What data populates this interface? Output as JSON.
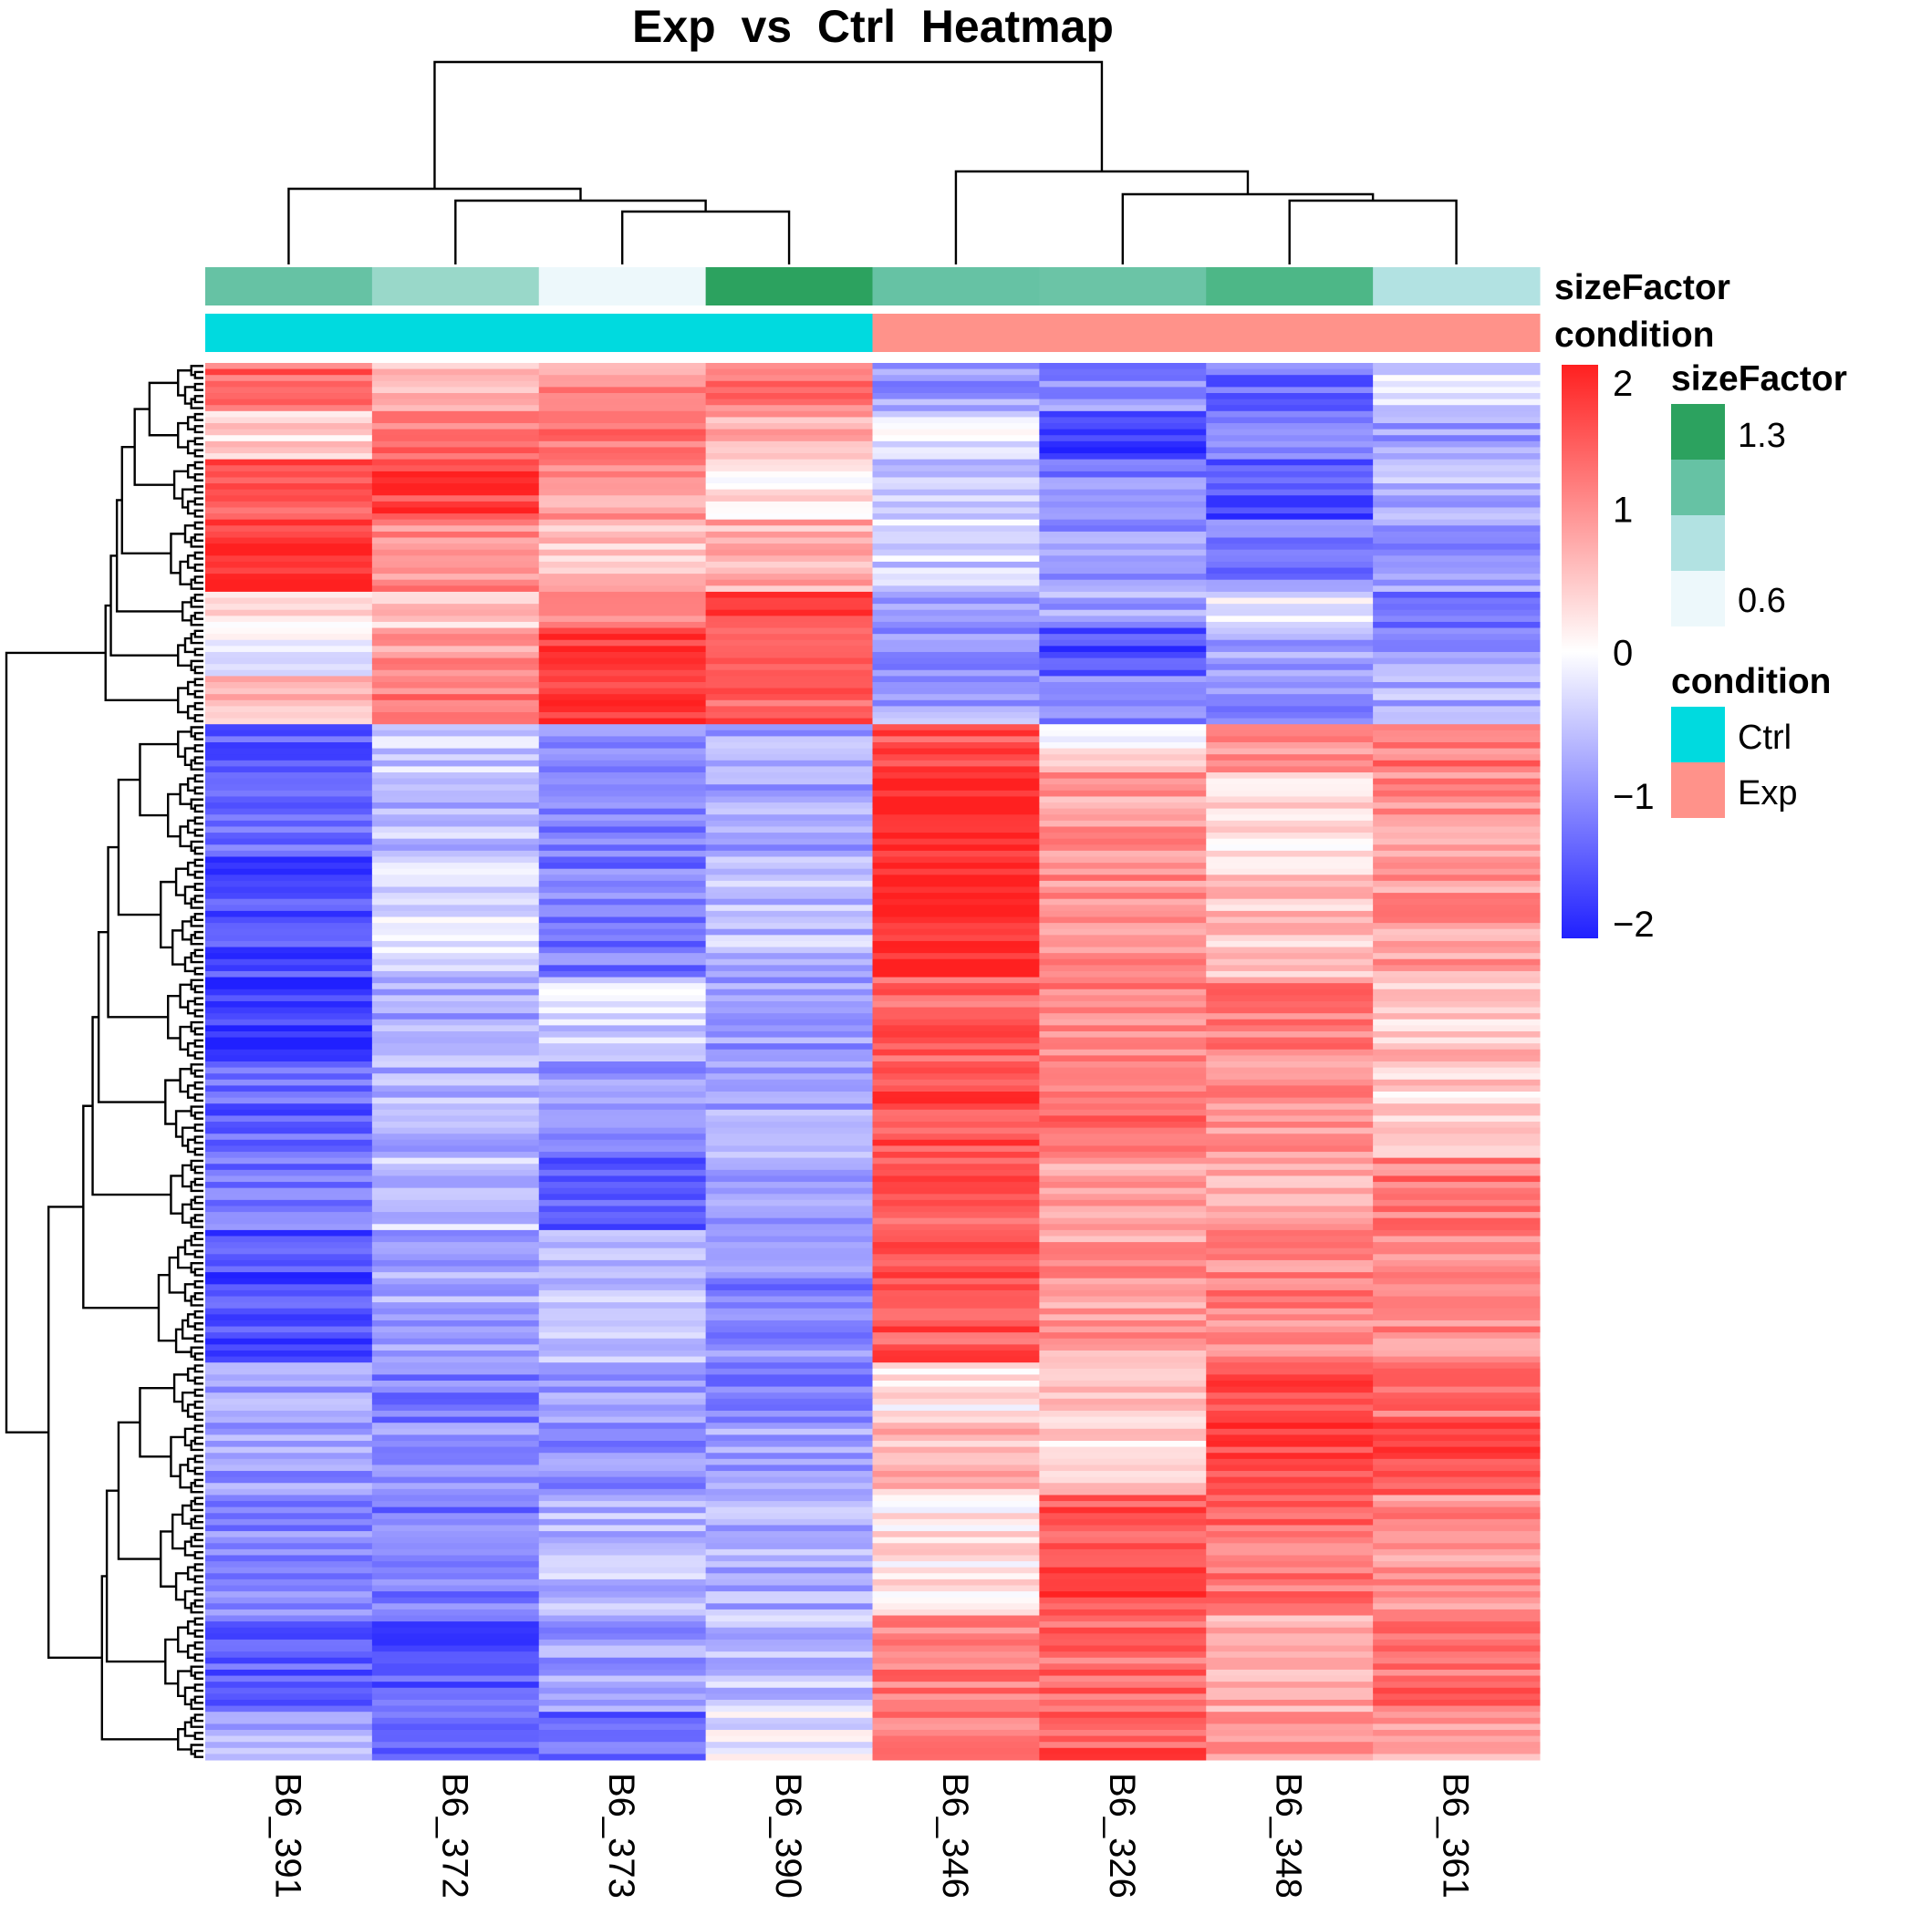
{
  "chart_data": {
    "type": "heatmap",
    "title": "Exp  vs  Ctrl  Heatmap",
    "columns": [
      "B6_391",
      "B6_372",
      "B6_373",
      "B6_390",
      "B6_346",
      "B6_326",
      "B6_348",
      "B6_361"
    ],
    "column_annotations": {
      "sizeFactor": {
        "label": "sizeFactor",
        "colors": [
          "#66C2A4",
          "#99D8C9",
          "#EDF8FB",
          "#2CA25F",
          "#66C2A4",
          "#6BC4A6",
          "#4DB787",
          "#B2E2E2"
        ]
      },
      "condition": {
        "label": "condition",
        "values": [
          "Ctrl",
          "Ctrl",
          "Ctrl",
          "Ctrl",
          "Exp",
          "Exp",
          "Exp",
          "Exp"
        ]
      }
    },
    "color_scale": {
      "min": -2,
      "max": 2,
      "low": "#2020FF",
      "mid": "#FFFFFF",
      "high": "#FF2020",
      "ticks": [
        {
          "v": 2,
          "label": "2"
        },
        {
          "v": 1,
          "label": "1"
        },
        {
          "v": 0,
          "label": "0"
        },
        {
          "v": -1,
          "label": "−1"
        },
        {
          "v": -2,
          "label": "−2"
        }
      ]
    },
    "legend_sizeFactor": {
      "title": "sizeFactor",
      "colors": [
        "#2CA25F",
        "#66C2A4",
        "#B2E2E2",
        "#EDF8FB"
      ],
      "high_label": "1.3",
      "low_label": "0.6"
    },
    "legend_condition": {
      "title": "condition",
      "items": [
        {
          "label": "Ctrl",
          "color": "#00DADF"
        },
        {
          "label": "Exp",
          "color": "#FF928A"
        }
      ]
    },
    "row_clusters": [
      {
        "segments": [
          {
            "n": 8,
            "values": [
              1.4,
              0.6,
              1.0,
              1.2,
              -0.9,
              -1.0,
              -1.3,
              -0.3
            ]
          },
          {
            "n": 8,
            "values": [
              0.3,
              1.3,
              1.2,
              0.8,
              -0.1,
              -1.9,
              -1.2,
              -0.9
            ]
          },
          {
            "n": 10,
            "values": [
              1.5,
              1.7,
              0.9,
              0.3,
              -0.6,
              -1.1,
              -1.6,
              -0.7
            ]
          },
          {
            "n": 12,
            "values": [
              1.9,
              1.0,
              0.6,
              0.7,
              -0.4,
              -1.0,
              -1.2,
              -0.9
            ]
          },
          {
            "n": 6,
            "values": [
              0.2,
              0.5,
              1.2,
              1.8,
              -0.9,
              -0.8,
              -0.2,
              -1.2
            ]
          },
          {
            "n": 8,
            "values": [
              -0.1,
              0.9,
              1.7,
              1.5,
              -1.0,
              -1.6,
              -0.9,
              -0.8
            ]
          },
          {
            "n": 8,
            "values": [
              0.6,
              1.2,
              1.8,
              1.4,
              -0.8,
              -1.0,
              -1.1,
              -0.7
            ]
          }
        ]
      },
      {
        "segments": [
          {
            "n": 8,
            "values": [
              -1.4,
              -0.5,
              -1.1,
              -0.8,
              1.6,
              0.2,
              1.0,
              1.2
            ]
          },
          {
            "n": 14,
            "values": [
              -1.2,
              -0.6,
              -1.2,
              -0.8,
              2.0,
              0.9,
              0.3,
              1.0
            ]
          },
          {
            "n": 20,
            "values": [
              -1.6,
              -0.3,
              -1.2,
              -0.6,
              2.0,
              1.0,
              0.5,
              0.9
            ]
          },
          {
            "n": 14,
            "values": [
              -1.8,
              -0.8,
              -0.4,
              -0.9,
              1.4,
              1.1,
              1.2,
              0.5
            ]
          },
          {
            "n": 16,
            "values": [
              -1.4,
              -0.7,
              -0.9,
              -0.8,
              1.6,
              1.3,
              1.0,
              0.4
            ]
          },
          {
            "n": 12,
            "values": [
              -1.2,
              -0.5,
              -1.4,
              -1.0,
              1.5,
              0.9,
              0.8,
              1.2
            ]
          },
          {
            "n": 22,
            "values": [
              -1.6,
              -0.8,
              -0.6,
              -1.1,
              1.5,
              0.9,
              1.1,
              1.0
            ]
          }
        ]
      },
      {
        "segments": [
          {
            "n": 10,
            "values": [
              -0.8,
              -1.2,
              -0.9,
              -1.2,
              0.2,
              0.5,
              1.6,
              1.3
            ]
          },
          {
            "n": 12,
            "values": [
              -0.9,
              -1.0,
              -1.1,
              -0.8,
              0.6,
              0.4,
              1.7,
              1.6
            ]
          },
          {
            "n": 20,
            "values": [
              -1.1,
              -1.2,
              -0.6,
              -0.7,
              0.2,
              1.6,
              1.3,
              1.0
            ]
          },
          {
            "n": 16,
            "values": [
              -1.5,
              -1.5,
              -0.9,
              -0.6,
              1.2,
              1.3,
              0.8,
              1.3
            ]
          },
          {
            "n": 8,
            "values": [
              -0.7,
              -1.4,
              -1.4,
              -0.2,
              1.1,
              1.5,
              0.9,
              0.9
            ]
          }
        ]
      }
    ]
  }
}
